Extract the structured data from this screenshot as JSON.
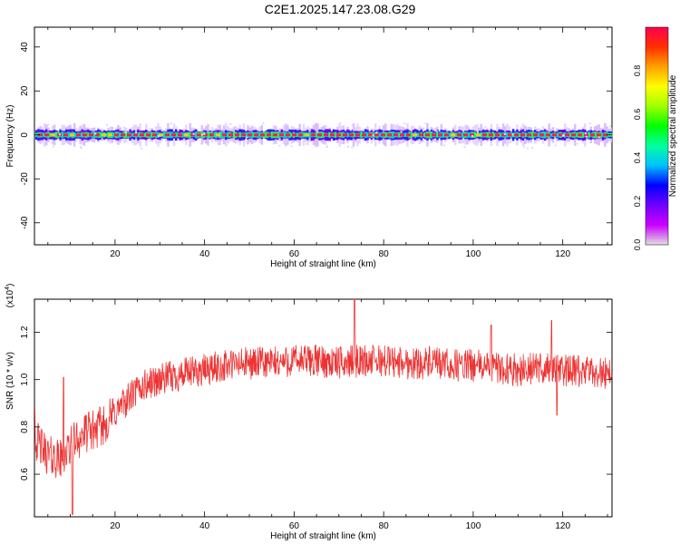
{
  "title": "C2E1.2025.147.23.08.G29",
  "chart_data": [
    {
      "type": "heatmap",
      "xlabel": "Height of straight line (km)",
      "ylabel": "Frequency (Hz)",
      "xlim": [
        2,
        131
      ],
      "ylim": [
        -50,
        49
      ],
      "xticks": [
        20,
        40,
        60,
        80,
        100,
        120
      ],
      "yticks": [
        -40,
        -20,
        0,
        20,
        40
      ],
      "grid": false,
      "colorbar": {
        "label": "Normalized spectral amplitude",
        "range": [
          0,
          1
        ],
        "ticks": [
          "0.0",
          "0.2",
          "0.4",
          "0.6",
          "0.8"
        ],
        "colors": [
          "#e0e0e0",
          "#cc00ff",
          "#7000ff",
          "#0000ff",
          "#00c0ff",
          "#00ffa0",
          "#00ff00",
          "#a0ff00",
          "#ffff00",
          "#ffa000",
          "#ff3000",
          "#ff0050"
        ]
      },
      "band_center_hz": 0,
      "band_halfwidth_hz": [
        -4,
        4
      ]
    },
    {
      "type": "line",
      "xlabel": "Height of straight line (km)",
      "ylabel": "SNR (10 * v/v)",
      "scale_note": "(x10^4)",
      "scale_base": "(x10",
      "scale_exp": "4",
      "scale_close": ")",
      "xlim": [
        2,
        131
      ],
      "ylim": [
        0.42,
        1.34
      ],
      "xticks": [
        20,
        40,
        60,
        80,
        100,
        120
      ],
      "yticks": [
        "0.6",
        "0.8",
        "1.0",
        "1.2"
      ],
      "ytick_values": [
        0.6,
        0.8,
        1.0,
        1.2
      ],
      "grid": false,
      "color": "#ee3333",
      "trend_x": [
        2,
        5,
        8,
        11,
        14,
        17,
        20,
        23,
        26,
        30,
        35,
        40,
        45,
        50,
        55,
        60,
        65,
        70,
        75,
        80,
        85,
        90,
        95,
        100,
        105,
        110,
        115,
        120,
        125,
        131
      ],
      "trend_y": [
        0.75,
        0.68,
        0.66,
        0.74,
        0.78,
        0.8,
        0.86,
        0.92,
        0.97,
        1.0,
        1.02,
        1.04,
        1.06,
        1.07,
        1.07,
        1.08,
        1.08,
        1.07,
        1.08,
        1.08,
        1.07,
        1.07,
        1.06,
        1.06,
        1.05,
        1.04,
        1.05,
        1.04,
        1.03,
        1.03
      ],
      "noise_amplitude": 0.07,
      "peaks": [
        [
          2,
          0.88
        ],
        [
          10.5,
          0.43
        ],
        [
          8.5,
          1.01
        ],
        [
          73.5,
          1.34
        ],
        [
          117.5,
          1.25
        ],
        [
          104,
          1.23
        ],
        [
          118.7,
          0.85
        ]
      ]
    }
  ]
}
